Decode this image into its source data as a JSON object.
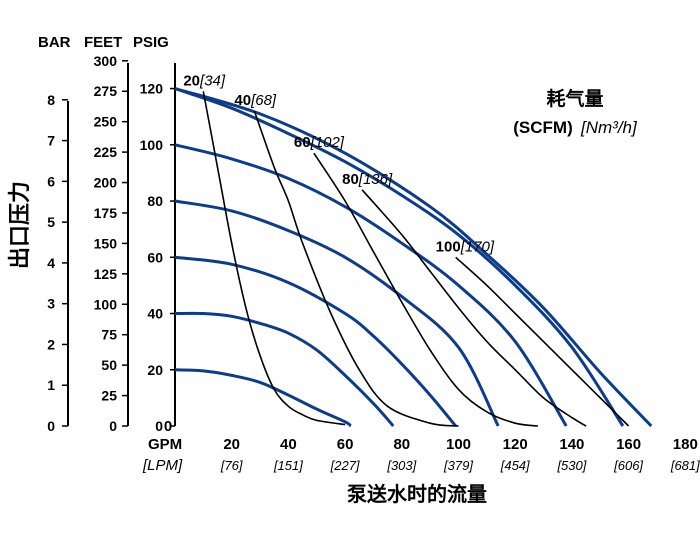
{
  "chart_data": {
    "type": "line",
    "title": "",
    "unit_headers": {
      "bar": "BAR",
      "feet": "FEET",
      "psig": "PSIG"
    },
    "ylabel": "出口压力",
    "xlabel": "泵送水时的流量",
    "x_unit_label": "GPM",
    "x_unit_label_alt": "[LPM]",
    "legend": {
      "title": "耗气量",
      "subtitle_bold": "(SCFM)",
      "subtitle_ital": "[Nm³/h]",
      "placement": "top-right"
    },
    "x_ticks": [
      "20",
      "40",
      "60",
      "80",
      "100",
      "120",
      "140",
      "160",
      "180"
    ],
    "x_ticks_lpm": [
      "[76]",
      "[151]",
      "[227]",
      "[303]",
      "[379]",
      "[454]",
      "[530]",
      "[606]",
      "[681]"
    ],
    "x_zero_label": "0",
    "psig_ticks": [
      "0",
      "20",
      "40",
      "60",
      "80",
      "100",
      "120"
    ],
    "feet_ticks": [
      "0",
      "25",
      "50",
      "75",
      "100",
      "125",
      "150",
      "175",
      "200",
      "225",
      "250",
      "275",
      "300"
    ],
    "bar_ticks": [
      "0",
      "1",
      "2",
      "3",
      "4",
      "5",
      "6",
      "7",
      "8"
    ],
    "xlim": [
      0,
      180
    ],
    "ylim": [
      0,
      130
    ],
    "pressure_curves": [
      {
        "inlet_psig": 20,
        "points": [
          [
            0,
            20
          ],
          [
            10,
            19.6
          ],
          [
            20,
            18
          ],
          [
            30,
            15.5
          ],
          [
            40,
            11
          ],
          [
            50,
            6
          ],
          [
            60,
            1.5
          ],
          [
            62,
            0
          ]
        ]
      },
      {
        "inlet_psig": 40,
        "points": [
          [
            0,
            40
          ],
          [
            10,
            40
          ],
          [
            20,
            39
          ],
          [
            30,
            36.5
          ],
          [
            40,
            33
          ],
          [
            50,
            27
          ],
          [
            60,
            18
          ],
          [
            70,
            8
          ],
          [
            77,
            0
          ]
        ]
      },
      {
        "inlet_psig": 60,
        "points": [
          [
            0,
            60
          ],
          [
            20,
            57.5
          ],
          [
            40,
            51
          ],
          [
            60,
            40
          ],
          [
            70,
            32
          ],
          [
            80,
            22
          ],
          [
            90,
            11
          ],
          [
            99,
            0
          ]
        ]
      },
      {
        "inlet_psig": 80,
        "points": [
          [
            0,
            80
          ],
          [
            20,
            76.5
          ],
          [
            40,
            69.5
          ],
          [
            60,
            60
          ],
          [
            80,
            46
          ],
          [
            100,
            28
          ],
          [
            114,
            0
          ]
        ]
      },
      {
        "inlet_psig": 100,
        "points": [
          [
            0,
            100
          ],
          [
            20,
            95
          ],
          [
            40,
            88
          ],
          [
            60,
            78
          ],
          [
            80,
            65
          ],
          [
            100,
            50
          ],
          [
            120,
            30
          ],
          [
            138,
            0
          ]
        ]
      },
      {
        "inlet_psig": 120,
        "points": [
          [
            0,
            120
          ],
          [
            20,
            113
          ],
          [
            40,
            104
          ],
          [
            60,
            94
          ],
          [
            80,
            82
          ],
          [
            100,
            68
          ],
          [
            120,
            50
          ],
          [
            140,
            28
          ],
          [
            158,
            0
          ]
        ]
      },
      {
        "inlet_psig": 120,
        "points": [
          [
            0,
            120
          ],
          [
            30,
            111
          ],
          [
            60,
            97
          ],
          [
            90,
            78
          ],
          [
            110,
            61
          ],
          [
            130,
            42
          ],
          [
            150,
            19
          ],
          [
            168,
            0
          ]
        ]
      }
    ],
    "air_consumption_curves": [
      {
        "label": "20",
        "label_metric": "[34]",
        "points": [
          [
            10,
            119
          ],
          [
            15,
            92
          ],
          [
            20,
            65
          ],
          [
            25,
            42
          ],
          [
            30,
            25
          ],
          [
            35,
            13
          ],
          [
            40,
            7
          ],
          [
            45,
            4
          ],
          [
            50,
            2
          ],
          [
            60,
            0.5
          ]
        ]
      },
      {
        "label": "40",
        "label_metric": "[68]",
        "points": [
          [
            28,
            112
          ],
          [
            35,
            92
          ],
          [
            40,
            80
          ],
          [
            45,
            65
          ],
          [
            55,
            40
          ],
          [
            65,
            20
          ],
          [
            75,
            7
          ],
          [
            90,
            1
          ],
          [
            100,
            0
          ]
        ]
      },
      {
        "label": "60",
        "label_metric": "[102]",
        "points": [
          [
            49,
            97
          ],
          [
            60,
            80
          ],
          [
            70,
            62
          ],
          [
            80,
            44
          ],
          [
            90,
            27
          ],
          [
            100,
            13
          ],
          [
            110,
            5
          ],
          [
            120,
            1
          ],
          [
            128,
            0
          ]
        ]
      },
      {
        "label": "80",
        "label_metric": "[136]",
        "points": [
          [
            66,
            84
          ],
          [
            80,
            68
          ],
          [
            90,
            55
          ],
          [
            100,
            42
          ],
          [
            110,
            30
          ],
          [
            120,
            20
          ],
          [
            130,
            10
          ],
          [
            140,
            3
          ],
          [
            145,
            0
          ]
        ]
      },
      {
        "label": "100",
        "label_metric": "[170]",
        "points": [
          [
            99,
            60
          ],
          [
            110,
            50
          ],
          [
            120,
            40
          ],
          [
            130,
            30
          ],
          [
            140,
            20
          ],
          [
            150,
            10
          ],
          [
            160,
            0
          ]
        ]
      }
    ],
    "grid": false
  }
}
